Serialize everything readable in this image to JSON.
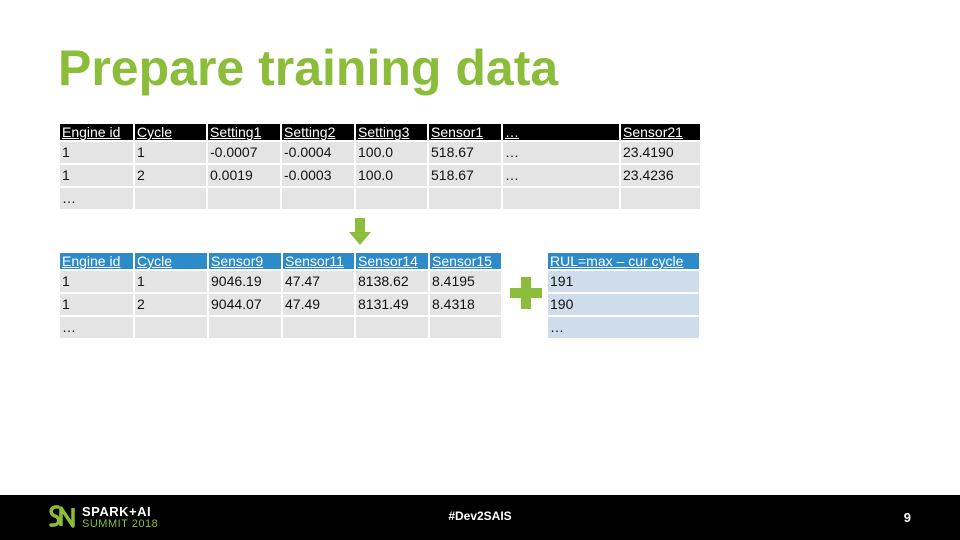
{
  "slide": {
    "title": "Prepare training data",
    "page_number": "9"
  },
  "table_raw": {
    "headers": [
      "Engine id",
      "Cycle",
      "Setting1",
      "Setting2",
      "Setting3",
      "Sensor1",
      "…",
      "Sensor21"
    ],
    "rows": [
      [
        "1",
        "1",
        "-0.0007",
        "-0.0004",
        "100.0",
        "518.67",
        "…",
        "23.4190"
      ],
      [
        "1",
        "2",
        "0.0019",
        "-0.0003",
        "100.0",
        "518.67",
        "…",
        "23.4236"
      ],
      [
        "…",
        "",
        "",
        "",
        "",
        "",
        "",
        ""
      ]
    ]
  },
  "table_selected": {
    "headers": [
      "Engine id",
      "Cycle",
      "Sensor9",
      "Sensor11",
      "Sensor14",
      "Sensor15"
    ],
    "rows": [
      [
        "1",
        "1",
        "9046.19",
        "47.47",
        "8138.62",
        "8.4195"
      ],
      [
        "1",
        "2",
        "9044.07",
        "47.49",
        "8131.49",
        "8.4318"
      ],
      [
        "…",
        "",
        "",
        "",
        "",
        ""
      ]
    ]
  },
  "table_rul": {
    "header": "RUL=max – cur cycle",
    "rows": [
      "191",
      "190",
      "…"
    ]
  },
  "icons": {
    "arrow": "arrow-down-icon",
    "plus": "plus-icon",
    "logo": "spark-ai-logo"
  },
  "colors": {
    "accent_green": "#8cbd3a",
    "header_blue": "#2e8bc9",
    "header_black": "#000000"
  },
  "footer": {
    "logo_line1": "SPARK+AI",
    "logo_line2": "SUMMIT 2018",
    "hashtag": "#Dev2SAIS"
  }
}
